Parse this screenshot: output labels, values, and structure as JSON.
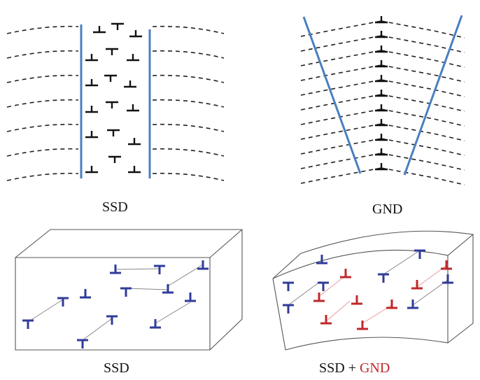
{
  "panels": {
    "top_left": {
      "caption": "SSD"
    },
    "top_right": {
      "caption": "GND"
    },
    "bottom_left": {
      "caption": "SSD"
    },
    "bottom_right": {
      "caption_ssd": "SSD",
      "caption_plus": "+",
      "caption_gnd": "GND"
    }
  },
  "colors": {
    "boundary": "#4a7fc1",
    "dislocation": "#111111",
    "ssd_3d": "#2f3b9a",
    "gnd_3d": "#c0282a",
    "gnd_text": "#c0282a",
    "box_line": "#555555"
  },
  "icons": {
    "dislocation_up": "inverted-t-symbol",
    "dislocation_down": "t-symbol"
  }
}
